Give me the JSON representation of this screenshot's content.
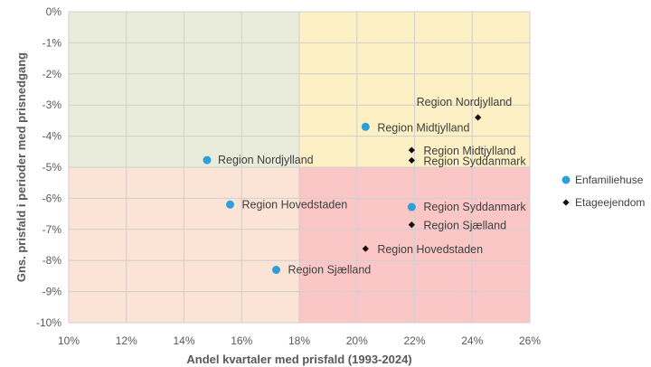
{
  "chart_data": {
    "type": "scatter",
    "title": "",
    "xlabel": "Andel kvartaler med prisfald (1993-2024)",
    "ylabel": "Gns. prisfald i perioder med prisnedgang",
    "xlim": [
      0.1,
      0.26
    ],
    "ylim": [
      -0.1,
      0.0
    ],
    "x_ticks": [
      "10%",
      "12%",
      "14%",
      "16%",
      "18%",
      "20%",
      "22%",
      "24%",
      "26%"
    ],
    "y_ticks": [
      "0%",
      "-1%",
      "-2%",
      "-3%",
      "-4%",
      "-5%",
      "-6%",
      "-7%",
      "-8%",
      "-9%",
      "-10%"
    ],
    "grid": true,
    "quadrants": {
      "x_split": 0.18,
      "y_split": -0.05,
      "colors": {
        "top_left": "#e9ecdb",
        "top_right": "#fdf0c4",
        "bottom_left": "#fbe3d6",
        "bottom_right": "#fbc6c6"
      }
    },
    "legend_position": "right",
    "series": [
      {
        "name": "Enfamiliehuse",
        "marker": "circle",
        "color": "#2e9fd8",
        "points": [
          {
            "label": "Region Nordjylland",
            "x": 0.148,
            "y": -0.0477
          },
          {
            "label": "Region Midtjylland",
            "x": 0.203,
            "y": -0.037
          },
          {
            "label": "Region Hovedstaden",
            "x": 0.156,
            "y": -0.062
          },
          {
            "label": "Region Syddanmark",
            "x": 0.219,
            "y": -0.0628
          },
          {
            "label": "Region Sjælland",
            "x": 0.172,
            "y": -0.083
          }
        ]
      },
      {
        "name": "Etageejendom",
        "marker": "diamond",
        "color": "#1a0a0a",
        "points": [
          {
            "label": "Region Nordjylland",
            "x": 0.242,
            "y": -0.034
          },
          {
            "label": "Region Midtjylland",
            "x": 0.219,
            "y": -0.0445
          },
          {
            "label": "Region Syddanmark",
            "x": 0.219,
            "y": -0.0478
          },
          {
            "label": "Region Sjælland",
            "x": 0.219,
            "y": -0.0685
          },
          {
            "label": "Region Hovedstaden",
            "x": 0.203,
            "y": -0.0762
          }
        ]
      }
    ]
  }
}
